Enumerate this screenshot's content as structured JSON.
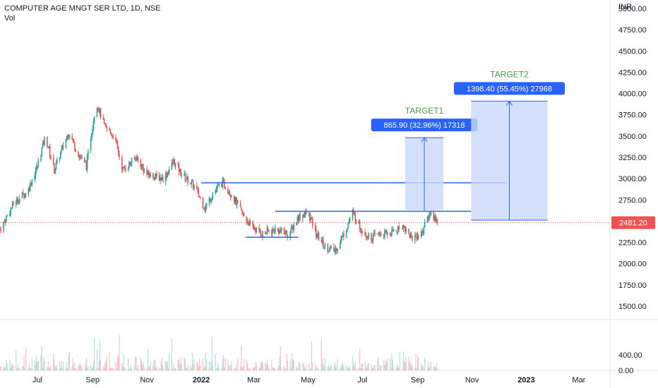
{
  "header": {
    "symbol_line": "COMPUTER AGE MNGT SER LTD, 1D, NSE",
    "volume_label": "Vol",
    "currency": "INR"
  },
  "price_axis": {
    "ticks": [
      "5000.00",
      "4750.00",
      "4500.00",
      "4250.00",
      "4000.00",
      "3750.00",
      "3500.00",
      "3250.00",
      "3000.00",
      "2750.00",
      "2500.00",
      "2250.00",
      "2000.00",
      "1750.00",
      "1500.00"
    ],
    "last_price_label": "2481.20"
  },
  "volume_axis": {
    "ticks": [
      "400.00",
      "0.00"
    ]
  },
  "time_axis": {
    "labels": [
      {
        "text": "Jul",
        "bold": false
      },
      {
        "text": "Sep",
        "bold": false
      },
      {
        "text": "Nov",
        "bold": false
      },
      {
        "text": "2022",
        "bold": true
      },
      {
        "text": "Mar",
        "bold": false
      },
      {
        "text": "May",
        "bold": false
      },
      {
        "text": "Jul",
        "bold": false
      },
      {
        "text": "Sep",
        "bold": false
      },
      {
        "text": "Nov",
        "bold": false
      },
      {
        "text": "2023",
        "bold": true
      },
      {
        "text": "Mar",
        "bold": false
      }
    ]
  },
  "annotations": {
    "target1": {
      "title": "TARGET1",
      "label": "865.90 (32.96%) 17318",
      "from": 2615,
      "to": 3481
    },
    "target2": {
      "title": "TARGET2",
      "label": "1398.40 (55.45%) 27968",
      "from": 2512,
      "to": 3910
    }
  },
  "colors": {
    "up": "#26a69a",
    "down": "#ef5350",
    "line": "#2962ff",
    "target_fill": "#c9d8fb",
    "label_bg": "#2962ff",
    "target_title": "#43a047",
    "last_price": "#ef5350",
    "grid_text": "#131722"
  },
  "chart_data": {
    "type": "candlestick",
    "title": "COMPUTER AGE MNGT SER LTD, 1D, NSE",
    "ylim": [
      1350,
      5100
    ],
    "y_unit": "INR",
    "last_price": 2481.2,
    "close_path": [
      [
        "2021-05-20",
        2400
      ],
      [
        "2021-06-05",
        2720
      ],
      [
        "2021-06-20",
        2850
      ],
      [
        "2021-07-01",
        3150
      ],
      [
        "2021-07-10",
        3500
      ],
      [
        "2021-07-20",
        3100
      ],
      [
        "2021-08-05",
        3550
      ],
      [
        "2021-08-15",
        3300
      ],
      [
        "2021-08-25",
        3150
      ],
      [
        "2021-09-05",
        3900
      ],
      [
        "2021-09-15",
        3600
      ],
      [
        "2021-09-25",
        3500
      ],
      [
        "2021-10-05",
        3100
      ],
      [
        "2021-10-20",
        3250
      ],
      [
        "2021-11-01",
        3050
      ],
      [
        "2021-11-20",
        3000
      ],
      [
        "2021-12-01",
        3200
      ],
      [
        "2021-12-10",
        3050
      ],
      [
        "2021-12-25",
        2900
      ],
      [
        "2022-01-05",
        2650
      ],
      [
        "2022-01-15",
        2850
      ],
      [
        "2022-01-25",
        2950
      ],
      [
        "2022-02-05",
        2800
      ],
      [
        "2022-02-15",
        2600
      ],
      [
        "2022-02-25",
        2450
      ],
      [
        "2022-03-10",
        2350
      ],
      [
        "2022-03-25",
        2400
      ],
      [
        "2022-04-10",
        2350
      ],
      [
        "2022-04-20",
        2550
      ],
      [
        "2022-05-01",
        2600
      ],
      [
        "2022-05-10",
        2350
      ],
      [
        "2022-05-20",
        2200
      ],
      [
        "2022-05-31",
        2150
      ],
      [
        "2022-06-10",
        2350
      ],
      [
        "2022-06-20",
        2600
      ],
      [
        "2022-06-30",
        2400
      ],
      [
        "2022-07-10",
        2300
      ],
      [
        "2022-07-20",
        2350
      ],
      [
        "2022-08-01",
        2350
      ],
      [
        "2022-08-15",
        2450
      ],
      [
        "2022-08-25",
        2300
      ],
      [
        "2022-09-05",
        2350
      ],
      [
        "2022-09-15",
        2600
      ],
      [
        "2022-09-25",
        2481
      ]
    ],
    "horizontal_levels": [
      {
        "price": 2950,
        "from": "2022-01-01",
        "to": "2022-12-10"
      },
      {
        "price": 2615,
        "from": "2022-03-25",
        "to": "2022-10-31"
      },
      {
        "price": 2310,
        "from": "2022-02-20",
        "to": "2022-04-20"
      }
    ],
    "x_range": [
      "2021-05-20",
      "2023-04-05"
    ],
    "tick_dates": [
      "2021-07-01",
      "2021-09-01",
      "2021-11-01",
      "2022-01-01",
      "2022-03-01",
      "2022-05-01",
      "2022-07-01",
      "2022-09-01",
      "2022-11-01",
      "2023-01-01",
      "2023-03-01"
    ],
    "volume": {
      "ylim": [
        0,
        1300
      ]
    }
  }
}
